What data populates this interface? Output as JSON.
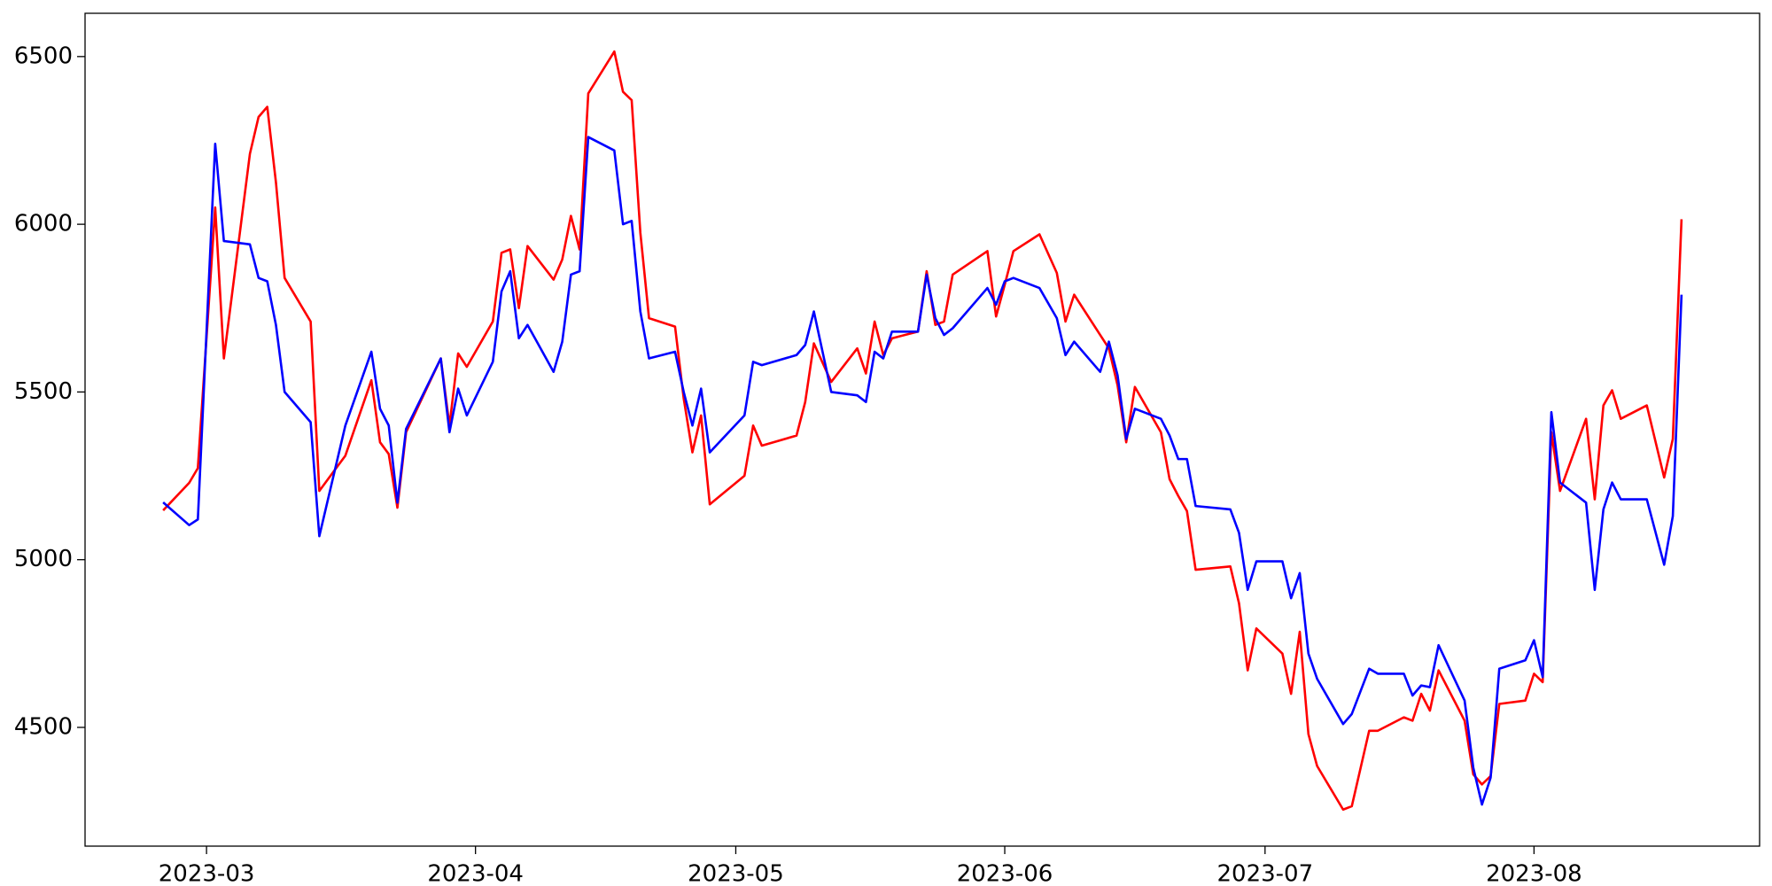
{
  "chart_data": {
    "type": "line",
    "x": [
      "2023-02-24",
      "2023-02-27",
      "2023-02-28",
      "2023-03-02",
      "2023-03-03",
      "2023-03-06",
      "2023-03-07",
      "2023-03-08",
      "2023-03-09",
      "2023-03-10",
      "2023-03-13",
      "2023-03-14",
      "2023-03-17",
      "2023-03-20",
      "2023-03-21",
      "2023-03-22",
      "2023-03-23",
      "2023-03-24",
      "2023-03-28",
      "2023-03-29",
      "2023-03-30",
      "2023-03-31",
      "2023-04-03",
      "2023-04-04",
      "2023-04-05",
      "2023-04-06",
      "2023-04-07",
      "2023-04-10",
      "2023-04-11",
      "2023-04-12",
      "2023-04-13",
      "2023-04-14",
      "2023-04-17",
      "2023-04-18",
      "2023-04-19",
      "2023-04-20",
      "2023-04-21",
      "2023-04-24",
      "2023-04-25",
      "2023-04-26",
      "2023-04-27",
      "2023-04-28",
      "2023-05-02",
      "2023-05-03",
      "2023-05-04",
      "2023-05-08",
      "2023-05-09",
      "2023-05-10",
      "2023-05-12",
      "2023-05-15",
      "2023-05-16",
      "2023-05-17",
      "2023-05-18",
      "2023-05-19",
      "2023-05-22",
      "2023-05-23",
      "2023-05-24",
      "2023-05-25",
      "2023-05-26",
      "2023-05-30",
      "2023-05-31",
      "2023-06-01",
      "2023-06-02",
      "2023-06-05",
      "2023-06-07",
      "2023-06-08",
      "2023-06-09",
      "2023-06-12",
      "2023-06-13",
      "2023-06-14",
      "2023-06-15",
      "2023-06-16",
      "2023-06-19",
      "2023-06-20",
      "2023-06-21",
      "2023-06-22",
      "2023-06-23",
      "2023-06-27",
      "2023-06-28",
      "2023-06-29",
      "2023-06-30",
      "2023-07-03",
      "2023-07-04",
      "2023-07-05",
      "2023-07-06",
      "2023-07-07",
      "2023-07-10",
      "2023-07-11",
      "2023-07-13",
      "2023-07-14",
      "2023-07-17",
      "2023-07-18",
      "2023-07-19",
      "2023-07-20",
      "2023-07-21",
      "2023-07-24",
      "2023-07-25",
      "2023-07-26",
      "2023-07-27",
      "2023-07-28",
      "2023-07-31",
      "2023-08-01",
      "2023-08-02",
      "2023-08-03",
      "2023-08-04",
      "2023-08-07",
      "2023-08-08",
      "2023-08-09",
      "2023-08-10",
      "2023-08-11",
      "2023-08-14",
      "2023-08-16",
      "2023-08-17",
      "2023-08-18"
    ],
    "series": [
      {
        "color": "#ff0000",
        "values": [
          5147,
          5229,
          5273,
          6050,
          5600,
          6210,
          6320,
          6350,
          6125,
          5840,
          5710,
          5205,
          5310,
          5535,
          5350,
          5315,
          5155,
          5380,
          5600,
          5400,
          5615,
          5575,
          5710,
          5915,
          5925,
          5750,
          5935,
          5835,
          5895,
          6025,
          5925,
          6390,
          6515,
          6395,
          6370,
          5975,
          5720,
          5695,
          5480,
          5320,
          5430,
          5165,
          5250,
          5400,
          5340,
          5370,
          5470,
          5645,
          5530,
          5630,
          5555,
          5710,
          5610,
          5660,
          5680,
          5860,
          5700,
          5710,
          5850,
          5920,
          5725,
          5820,
          5920,
          5970,
          5855,
          5710,
          5790,
          5670,
          5630,
          5520,
          5350,
          5515,
          5380,
          5240,
          5190,
          5145,
          4970,
          4980,
          4870,
          4670,
          4795,
          4720,
          4600,
          4785,
          4480,
          4385,
          4255,
          4265,
          4490,
          4490,
          4530,
          4520,
          4600,
          4550,
          4670,
          4520,
          4360,
          4330,
          4355,
          4570,
          4580,
          4660,
          4635,
          5380,
          5205,
          5420,
          5180,
          5460,
          5505,
          5420,
          5460,
          5245,
          5360,
          6015
        ]
      },
      {
        "color": "#0000ff",
        "values": [
          5171,
          5103,
          5120,
          6240,
          5950,
          5940,
          5840,
          5830,
          5700,
          5500,
          5410,
          5070,
          5400,
          5620,
          5450,
          5400,
          5170,
          5390,
          5600,
          5380,
          5510,
          5430,
          5590,
          5800,
          5860,
          5660,
          5700,
          5560,
          5650,
          5850,
          5860,
          6260,
          6220,
          6000,
          6010,
          5740,
          5600,
          5620,
          5500,
          5400,
          5510,
          5320,
          5430,
          5590,
          5580,
          5610,
          5640,
          5740,
          5500,
          5490,
          5470,
          5620,
          5600,
          5680,
          5680,
          5850,
          5720,
          5670,
          5690,
          5810,
          5760,
          5830,
          5840,
          5810,
          5720,
          5610,
          5650,
          5560,
          5650,
          5550,
          5360,
          5450,
          5420,
          5370,
          5300,
          5300,
          5160,
          5150,
          5080,
          4910,
          4995,
          4995,
          4885,
          4960,
          4720,
          4645,
          4510,
          4540,
          4675,
          4660,
          4660,
          4595,
          4625,
          4620,
          4745,
          4580,
          4380,
          4270,
          4350,
          4675,
          4700,
          4760,
          4650,
          5440,
          5230,
          5170,
          4910,
          5150,
          5230,
          5180,
          5180,
          4985,
          5130,
          5790
        ]
      }
    ],
    "xlim": [
      "2023-02-15",
      "2023-08-27"
    ],
    "xticks": [
      {
        "value": "2023-03-01",
        "label": "2023-03"
      },
      {
        "value": "2023-04-01",
        "label": "2023-04"
      },
      {
        "value": "2023-05-01",
        "label": "2023-05"
      },
      {
        "value": "2023-06-01",
        "label": "2023-06"
      },
      {
        "value": "2023-07-01",
        "label": "2023-07"
      },
      {
        "value": "2023-08-01",
        "label": "2023-08"
      }
    ],
    "ylim": [
      4146,
      6629
    ],
    "yticks": [
      4500,
      5000,
      5500,
      6000,
      6500
    ],
    "grid": false
  }
}
